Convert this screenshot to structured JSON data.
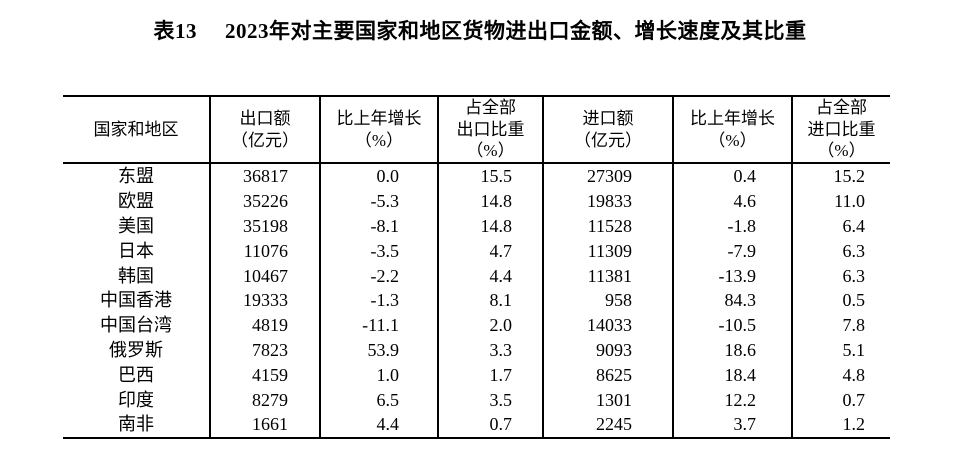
{
  "page": {
    "background_color": "#ffffff",
    "text_color": "#000000"
  },
  "title": {
    "prefix": "表13",
    "text": "2023年对主要国家和地区货物进出口金额、增长速度及其比重"
  },
  "table": {
    "columns": [
      {
        "key": "region",
        "label": "国家和地区"
      },
      {
        "key": "export_amount",
        "label": "出口额\n（亿元）"
      },
      {
        "key": "export_growth",
        "label": "比上年增长\n（%）"
      },
      {
        "key": "export_share",
        "label": "占全部\n出口比重\n（%）"
      },
      {
        "key": "import_amount",
        "label": "进口额\n（亿元）"
      },
      {
        "key": "import_growth",
        "label": "比上年增长\n（%）"
      },
      {
        "key": "import_share",
        "label": "占全部\n进口比重\n（%）"
      }
    ],
    "rows": [
      {
        "region": "东盟",
        "export_amount": "36817",
        "export_growth": "0.0",
        "export_share": "15.5",
        "import_amount": "27309",
        "import_growth": "0.4",
        "import_share": "15.2"
      },
      {
        "region": "欧盟",
        "export_amount": "35226",
        "export_growth": "-5.3",
        "export_share": "14.8",
        "import_amount": "19833",
        "import_growth": "4.6",
        "import_share": "11.0"
      },
      {
        "region": "美国",
        "export_amount": "35198",
        "export_growth": "-8.1",
        "export_share": "14.8",
        "import_amount": "11528",
        "import_growth": "-1.8",
        "import_share": "6.4"
      },
      {
        "region": "日本",
        "export_amount": "11076",
        "export_growth": "-3.5",
        "export_share": "4.7",
        "import_amount": "11309",
        "import_growth": "-7.9",
        "import_share": "6.3"
      },
      {
        "region": "韩国",
        "export_amount": "10467",
        "export_growth": "-2.2",
        "export_share": "4.4",
        "import_amount": "11381",
        "import_growth": "-13.9",
        "import_share": "6.3"
      },
      {
        "region": "中国香港",
        "export_amount": "19333",
        "export_growth": "-1.3",
        "export_share": "8.1",
        "import_amount": "958",
        "import_growth": "84.3",
        "import_share": "0.5"
      },
      {
        "region": "中国台湾",
        "export_amount": "4819",
        "export_growth": "-11.1",
        "export_share": "2.0",
        "import_amount": "14033",
        "import_growth": "-10.5",
        "import_share": "7.8"
      },
      {
        "region": "俄罗斯",
        "export_amount": "7823",
        "export_growth": "53.9",
        "export_share": "3.3",
        "import_amount": "9093",
        "import_growth": "18.6",
        "import_share": "5.1"
      },
      {
        "region": "巴西",
        "export_amount": "4159",
        "export_growth": "1.0",
        "export_share": "1.7",
        "import_amount": "8625",
        "import_growth": "18.4",
        "import_share": "4.8"
      },
      {
        "region": "印度",
        "export_amount": "8279",
        "export_growth": "6.5",
        "export_share": "3.5",
        "import_amount": "1301",
        "import_growth": "12.2",
        "import_share": "0.7"
      },
      {
        "region": "南非",
        "export_amount": "1661",
        "export_growth": "4.4",
        "export_share": "0.7",
        "import_amount": "2245",
        "import_growth": "3.7",
        "import_share": "1.2"
      }
    ]
  }
}
